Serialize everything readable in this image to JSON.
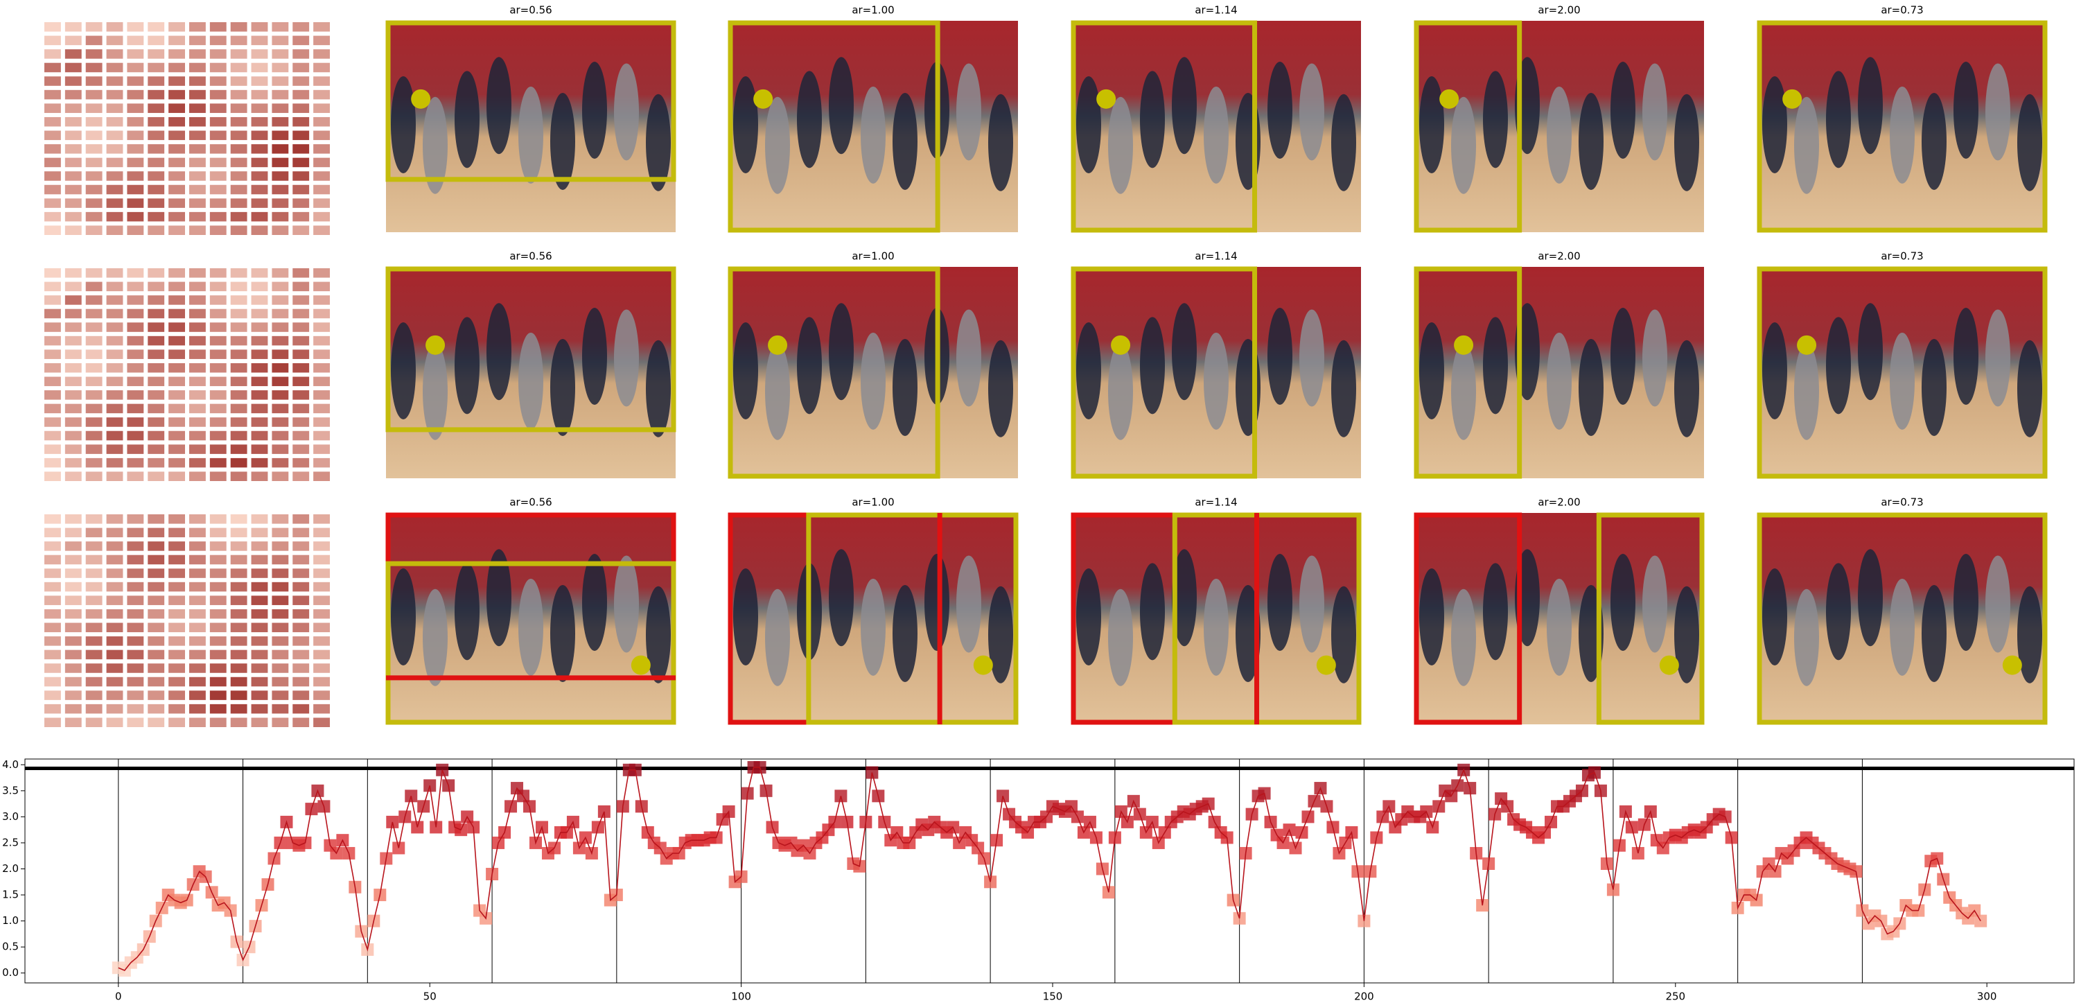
{
  "panel_titles": [
    [
      "ar=0.56",
      "ar=1.00",
      "ar=1.14",
      "ar=2.00",
      "ar=0.73"
    ],
    [
      "ar=0.56",
      "ar=1.00",
      "ar=1.14",
      "ar=2.00",
      "ar=0.73"
    ],
    [
      "ar=0.56",
      "ar=1.00",
      "ar=1.14",
      "ar=2.00",
      "ar=0.73"
    ]
  ],
  "chart_data": {
    "type": "line",
    "x_start": 0,
    "values": [
      0.1,
      0.05,
      0.2,
      0.3,
      0.45,
      0.7,
      1.0,
      1.25,
      1.5,
      1.4,
      1.35,
      1.4,
      1.7,
      1.95,
      1.85,
      1.55,
      1.3,
      1.35,
      1.2,
      0.6,
      0.25,
      0.5,
      0.9,
      1.3,
      1.7,
      2.2,
      2.5,
      2.9,
      2.5,
      2.45,
      2.5,
      3.15,
      3.5,
      3.2,
      2.45,
      2.3,
      2.55,
      2.3,
      1.65,
      0.8,
      0.45,
      1.0,
      1.5,
      2.2,
      2.9,
      2.4,
      3.0,
      3.4,
      2.8,
      3.2,
      3.6,
      2.8,
      3.9,
      3.6,
      2.8,
      2.75,
      3.0,
      2.8,
      1.2,
      1.05,
      1.9,
      2.5,
      2.7,
      3.2,
      3.55,
      3.4,
      3.2,
      2.5,
      2.8,
      2.3,
      2.4,
      2.7,
      2.7,
      2.9,
      2.4,
      2.6,
      2.3,
      2.8,
      3.1,
      1.4,
      1.5,
      3.2,
      3.9,
      3.9,
      3.2,
      2.7,
      2.5,
      2.4,
      2.2,
      2.3,
      2.3,
      2.5,
      2.55,
      2.55,
      2.55,
      2.6,
      2.6,
      2.95,
      3.1,
      1.75,
      1.85,
      3.45,
      3.95,
      3.95,
      3.5,
      2.8,
      2.5,
      2.45,
      2.5,
      2.35,
      2.45,
      2.3,
      2.5,
      2.6,
      2.75,
      2.9,
      3.4,
      2.9,
      2.1,
      2.05,
      2.9,
      3.85,
      3.4,
      2.9,
      2.55,
      2.7,
      2.5,
      2.5,
      2.7,
      2.85,
      2.75,
      2.9,
      2.8,
      2.7,
      2.8,
      2.5,
      2.7,
      2.55,
      2.4,
      2.2,
      1.75,
      2.55,
      3.4,
      3.05,
      2.9,
      2.8,
      2.7,
      2.9,
      2.9,
      3.0,
      3.2,
      3.15,
      3.1,
      3.2,
      3.0,
      2.7,
      2.9,
      2.6,
      2.0,
      1.55,
      2.6,
      3.1,
      2.9,
      3.3,
      3.05,
      2.7,
      2.9,
      2.5,
      2.7,
      2.9,
      3.0,
      3.1,
      3.05,
      3.15,
      3.2,
      3.25,
      2.9,
      2.7,
      2.6,
      1.4,
      1.05,
      2.3,
      3.05,
      3.4,
      3.45,
      2.9,
      2.65,
      2.5,
      2.75,
      2.4,
      2.7,
      3.0,
      3.3,
      3.55,
      3.2,
      2.8,
      2.3,
      2.5,
      2.7,
      1.95,
      1.0,
      1.95,
      2.6,
      3.0,
      3.2,
      2.8,
      2.95,
      3.1,
      3.0,
      3.0,
      3.1,
      2.8,
      3.2,
      3.5,
      3.4,
      3.6,
      3.9,
      3.55,
      2.3,
      1.3,
      2.1,
      3.05,
      3.35,
      3.2,
      2.95,
      2.85,
      2.8,
      2.7,
      2.6,
      2.7,
      2.9,
      3.2,
      3.2,
      3.3,
      3.4,
      3.5,
      3.8,
      3.85,
      3.5,
      2.1,
      1.6,
      2.45,
      3.1,
      2.8,
      2.3,
      2.85,
      3.1,
      2.55,
      2.4,
      2.6,
      2.65,
      2.6,
      2.7,
      2.75,
      2.7,
      2.8,
      2.95,
      3.05,
      3.0,
      2.6,
      1.25,
      1.5,
      1.5,
      1.4,
      1.95,
      2.1,
      1.95,
      2.3,
      2.2,
      2.35,
      2.5,
      2.6,
      2.5,
      2.4,
      2.3,
      2.2,
      2.1,
      2.05,
      2.0,
      1.95,
      1.2,
      0.95,
      1.1,
      1.0,
      0.75,
      0.8,
      0.95,
      1.3,
      1.2,
      1.2,
      1.6,
      2.15,
      2.2,
      1.8,
      1.45,
      1.3,
      1.15,
      1.05,
      1.2,
      1.0
    ],
    "line_color": "#b8141c",
    "marker_colormap": [
      "#fdd5c4",
      "#f4836a",
      "#d8262d",
      "#9b0d1d"
    ],
    "xlim": [
      -15,
      314
    ],
    "ylim": [
      -0.19,
      4.11
    ],
    "xticks": [
      0,
      50,
      100,
      150,
      200,
      250,
      300
    ],
    "yticks": [
      {
        "value": 0,
        "label": "0.0"
      },
      {
        "value": 0.5,
        "label": "0.5"
      },
      {
        "value": 1,
        "label": "1.0"
      },
      {
        "value": 1.5,
        "label": "1.5"
      },
      {
        "value": 2,
        "label": "2.0"
      },
      {
        "value": 2.5,
        "label": "2.5"
      },
      {
        "value": 3,
        "label": "3.0"
      },
      {
        "value": 3.5,
        "label": "3.5"
      },
      {
        "value": 4,
        "label": "4.0"
      }
    ],
    "vlines": [
      0,
      20,
      40,
      60,
      80,
      100,
      120,
      140,
      160,
      180,
      200,
      220,
      240,
      260,
      280
    ],
    "hline": 3.93
  }
}
